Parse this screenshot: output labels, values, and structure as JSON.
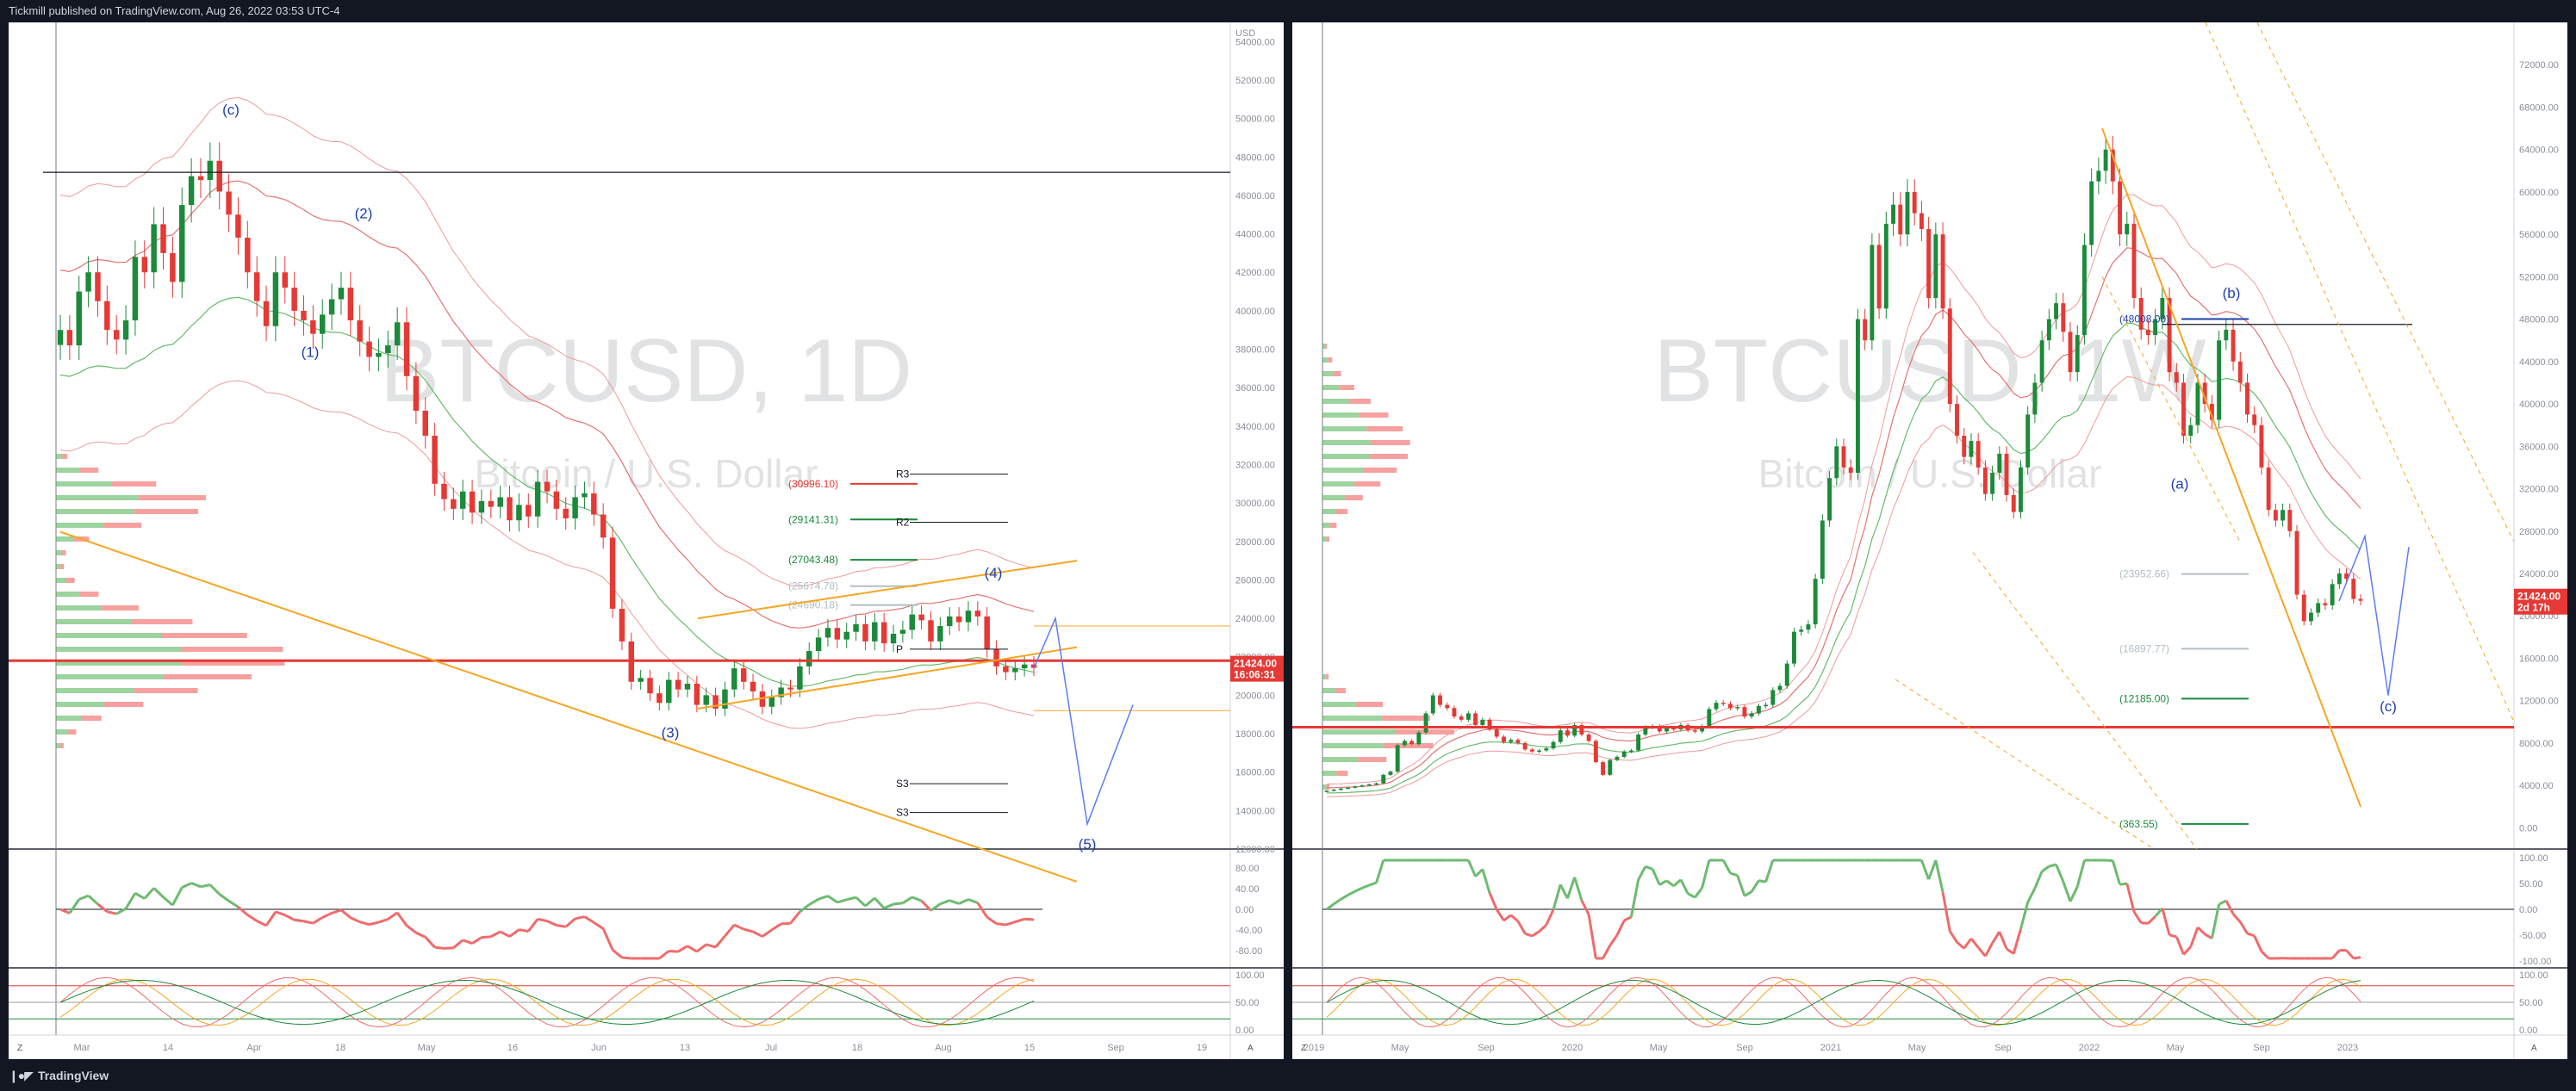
{
  "header": {
    "published_text": "Tickmill published on TradingView.com, Aug 26, 2022 03:53 UTC-4"
  },
  "footer": {
    "brand": "TradingView",
    "logo_icon": "tradingview-logo-icon"
  },
  "colors": {
    "bull": "#1b8a3a",
    "bear": "#e53935",
    "orange": "#f5a623",
    "wave": "#1e40af",
    "rsi_up": "#6dbb6f",
    "rsi_down": "#ef6b6b"
  },
  "chart_data": [
    {
      "id": "left",
      "type": "candlestick",
      "symbol": "BTCUSD",
      "title": "BTCUSD, 1D",
      "subtitle": "Bitcoin / U.S. Dollar",
      "currency": "USD",
      "ylim": [
        12000,
        55000
      ],
      "y_ticks": [
        "54000.00",
        "52000.00",
        "50000.00",
        "48000.00",
        "46000.00",
        "44000.00",
        "42000.00",
        "40000.00",
        "38000.00",
        "36000.00",
        "34000.00",
        "32000.00",
        "30000.00",
        "28000.00",
        "26000.00",
        "24000.00",
        "22000.00",
        "20000.00",
        "18000.00",
        "16000.00",
        "14000.00",
        "12000.00"
      ],
      "x_ticks": [
        "Mar",
        "14",
        "Apr",
        "18",
        "May",
        "16",
        "Jun",
        "13",
        "Jul",
        "18",
        "Aug",
        "15",
        "Sep",
        "19"
      ],
      "last_price": "21424.00",
      "countdown": "16:06:31",
      "closes": [
        39000,
        38200,
        41000,
        42000,
        40500,
        39000,
        38500,
        39500,
        42800,
        42000,
        44500,
        43000,
        41500,
        45500,
        47000,
        46800,
        47800,
        46200,
        45000,
        43800,
        42000,
        40500,
        39200,
        42000,
        41200,
        40000,
        39500,
        38800,
        39800,
        40600,
        41200,
        39500,
        38400,
        37600,
        37800,
        38200,
        39400,
        36600,
        34800,
        33500,
        31000,
        30200,
        29700,
        30600,
        29500,
        30100,
        29800,
        30300,
        29100,
        29900,
        29300,
        31100,
        30600,
        29700,
        29200,
        30300,
        30500,
        29400,
        28200,
        24500,
        22800,
        20700,
        20900,
        20100,
        19600,
        20800,
        20300,
        20600,
        19500,
        20000,
        19300,
        20300,
        21400,
        20700,
        20200,
        19400,
        19900,
        20400,
        20300,
        21500,
        22300,
        23000,
        23500,
        22900,
        23300,
        23700,
        22800,
        23800,
        22700,
        23200,
        23400,
        24200,
        23900,
        22800,
        23600,
        24100,
        23800,
        24400,
        24100,
        22400,
        21500,
        21200,
        21400,
        21600,
        21424
      ],
      "levels": [
        {
          "label": "(30996.10)",
          "value": 30996.1,
          "color": "#e53935"
        },
        {
          "label": "(29141.31)",
          "value": 29141.31,
          "color": "#1b8a3a"
        },
        {
          "label": "(27043.48)",
          "value": 27043.48,
          "color": "#1b8a3a"
        },
        {
          "label": "(25674.78)",
          "value": 25674.78,
          "color": "#b0bec5"
        },
        {
          "label": "(24690.18)",
          "value": 24690.18,
          "color": "#b0bec5"
        }
      ],
      "pivots": [
        {
          "label": "R3",
          "value": 31500
        },
        {
          "label": "R2",
          "value": 29000
        },
        {
          "label": "P",
          "value": 22400
        },
        {
          "label": "S3",
          "value": 15400
        },
        {
          "label": "S3",
          "value": 13900
        }
      ],
      "waves": [
        "(c)",
        "(1)",
        "(2)",
        "(3)",
        "(4)",
        "(5)"
      ],
      "rsi_ticks": [
        "80.00",
        "40.00",
        "0.00",
        "-40.00",
        "-80.00"
      ],
      "stoch_ticks": [
        "100.00",
        "50.00",
        "0.00"
      ]
    },
    {
      "id": "right",
      "type": "candlestick",
      "symbol": "BTCUSD",
      "title": "BTCUSD, 1W",
      "subtitle": "Bitcoin / U.S. Dollar",
      "ylim": [
        -2000,
        76000
      ],
      "y_ticks": [
        "72000.00",
        "68000.00",
        "64000.00",
        "60000.00",
        "56000.00",
        "52000.00",
        "48000.00",
        "44000.00",
        "40000.00",
        "36000.00",
        "32000.00",
        "28000.00",
        "24000.00",
        "20000.00",
        "16000.00",
        "12000.00",
        "8000.00",
        "4000.00",
        "0.00"
      ],
      "x_ticks": [
        "2019",
        "May",
        "Sep",
        "2020",
        "May",
        "Sep",
        "2021",
        "May",
        "Sep",
        "2022",
        "May",
        "Sep",
        "2023"
      ],
      "last_price": "21424.00",
      "countdown": "2d 17h",
      "closes": [
        3500,
        3600,
        3700,
        3800,
        3900,
        4000,
        4100,
        4200,
        5000,
        5300,
        7800,
        8200,
        7900,
        9000,
        10800,
        12500,
        11600,
        11300,
        10500,
        10200,
        10800,
        9700,
        10200,
        9300,
        8600,
        8100,
        8300,
        8000,
        7400,
        7200,
        7300,
        7500,
        8100,
        9200,
        8700,
        9700,
        8800,
        8200,
        6200,
        5000,
        6400,
        6700,
        7200,
        7300,
        8800,
        9500,
        9600,
        9100,
        9400,
        9300,
        9700,
        9200,
        9100,
        9600,
        11200,
        11800,
        11700,
        11300,
        11400,
        10500,
        10800,
        11500,
        11600,
        13000,
        13400,
        15500,
        18500,
        18700,
        19200,
        23500,
        29000,
        33000,
        36000,
        34000,
        33500,
        48000,
        46000,
        55000,
        49000,
        57000,
        58800,
        56000,
        60000,
        58000,
        56500,
        50000,
        56000,
        49000,
        40000,
        37000,
        35000,
        36500,
        34000,
        31500,
        33500,
        35300,
        31400,
        29800,
        34000,
        39000,
        42000,
        46000,
        48000,
        49500,
        46800,
        43000,
        46500,
        55000,
        61000,
        62000,
        64000,
        61000,
        56000,
        57000,
        50000,
        47000,
        46500,
        48000,
        50000,
        43000,
        42000,
        37000,
        38000,
        42000,
        40000,
        38500,
        46000,
        47000,
        44000,
        42000,
        39000,
        38000,
        34000,
        30000,
        29000,
        30000,
        28000,
        22000,
        19500,
        20300,
        21200,
        21000,
        23000,
        24000,
        23500,
        21600,
        21424
      ],
      "levels": [
        {
          "label": "(48008.00)",
          "value": 48008.0,
          "color": "#1e40af"
        },
        {
          "label": "(23952.66)",
          "value": 23952.66,
          "color": "#b0bec5"
        },
        {
          "label": "(16897.77)",
          "value": 16897.77,
          "color": "#b0bec5"
        },
        {
          "label": "(12185.00)",
          "value": 12185.0,
          "color": "#1b8a3a"
        },
        {
          "label": "(363.55)",
          "value": 363.55,
          "color": "#1b8a3a"
        }
      ],
      "waves": [
        "(a)",
        "(b)",
        "(c)"
      ],
      "rsi_ticks": [
        "100.00",
        "50.00",
        "0.00",
        "-50.00",
        "-100.00"
      ],
      "stoch_ticks": [
        "100.00",
        "50.00",
        "0.00"
      ]
    }
  ]
}
